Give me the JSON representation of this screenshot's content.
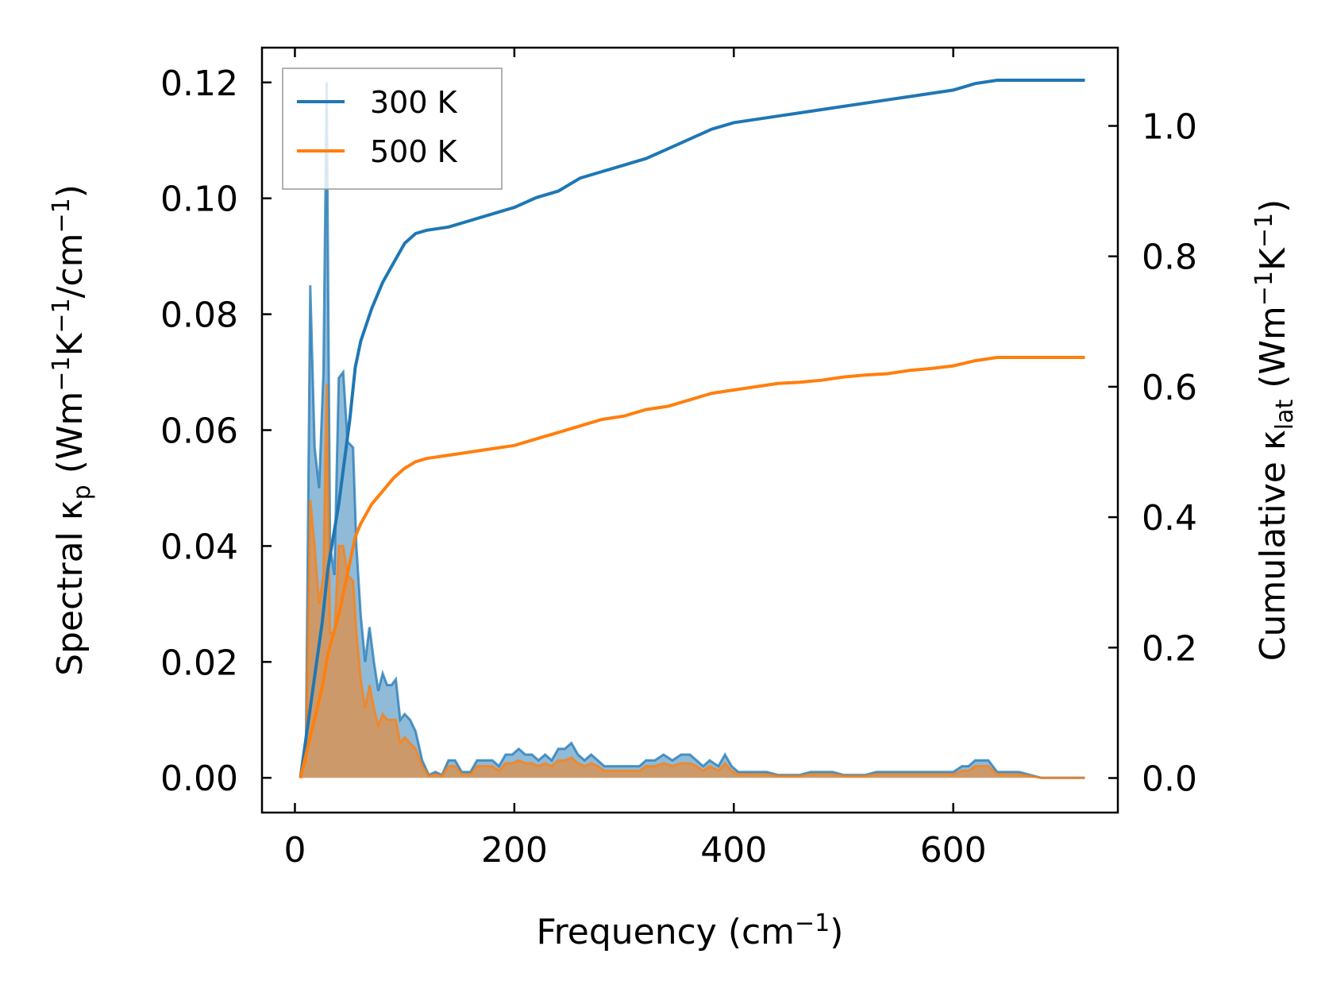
{
  "chart_data": {
    "type": "line",
    "xlabel": "Frequency (cm",
    "xlabel_sup": "−1",
    "xlabel_tail": ")",
    "ylabel_left_main": "Spectral κ",
    "ylabel_left_sub": "p",
    "ylabel_left_tail1": " (Wm",
    "ylabel_left_sup1": "−1",
    "ylabel_left_tail2": "K",
    "ylabel_left_sup2": "−1",
    "ylabel_left_tail3": "/cm",
    "ylabel_left_sup3": "−1",
    "ylabel_left_tail4": ")",
    "ylabel_right_main": "Cumulative κ",
    "ylabel_right_sub": "lat",
    "ylabel_right_tail1": " (Wm",
    "ylabel_right_sup1": "−1",
    "ylabel_right_tail2": "K",
    "ylabel_right_sup2": "−1",
    "ylabel_right_tail3": ")",
    "xlim": [
      -30,
      750
    ],
    "ylim_left": [
      -0.006,
      0.126
    ],
    "ylim_right": [
      -0.053,
      1.12
    ],
    "x_ticks": [
      "0",
      "200",
      "400",
      "600"
    ],
    "x_tick_values": [
      0,
      200,
      400,
      600
    ],
    "y_left_ticks": [
      "0.00",
      "0.02",
      "0.04",
      "0.06",
      "0.08",
      "0.10",
      "0.12"
    ],
    "y_left_tick_values": [
      0,
      0.02,
      0.04,
      0.06,
      0.08,
      0.1,
      0.12
    ],
    "y_right_ticks": [
      "0.0",
      "0.2",
      "0.4",
      "0.6",
      "0.8",
      "1.0"
    ],
    "y_right_tick_values": [
      0,
      0.2,
      0.4,
      0.6,
      0.8,
      1.0
    ],
    "legend_position": "top-left",
    "legend": [
      {
        "label": "300 K",
        "color": "#1f77b4"
      },
      {
        "label": "500 K",
        "color": "#ff7f0e"
      }
    ],
    "spectral_series": [
      {
        "name": "300 K",
        "color": "#1f77b4",
        "axis": "left",
        "fill": true,
        "points": [
          [
            5,
            0
          ],
          [
            10,
            0.005
          ],
          [
            14,
            0.085
          ],
          [
            18,
            0.057
          ],
          [
            22,
            0.05
          ],
          [
            26,
            0.07
          ],
          [
            29,
            0.12
          ],
          [
            32,
            0.04
          ],
          [
            36,
            0.035
          ],
          [
            40,
            0.069
          ],
          [
            44,
            0.07
          ],
          [
            48,
            0.058
          ],
          [
            53,
            0.057
          ],
          [
            56,
            0.04
          ],
          [
            60,
            0.028
          ],
          [
            64,
            0.02
          ],
          [
            68,
            0.026
          ],
          [
            72,
            0.02
          ],
          [
            76,
            0.015
          ],
          [
            80,
            0.018
          ],
          [
            84,
            0.016
          ],
          [
            88,
            0.016
          ],
          [
            92,
            0.017
          ],
          [
            96,
            0.01
          ],
          [
            100,
            0.011
          ],
          [
            105,
            0.01
          ],
          [
            110,
            0.008
          ],
          [
            116,
            0.003
          ],
          [
            122,
            0.0005
          ],
          [
            128,
            0.001
          ],
          [
            134,
            0.0005
          ],
          [
            140,
            0.003
          ],
          [
            146,
            0.003
          ],
          [
            152,
            0.001
          ],
          [
            160,
            0.001
          ],
          [
            166,
            0.003
          ],
          [
            172,
            0.003
          ],
          [
            180,
            0.003
          ],
          [
            186,
            0.002
          ],
          [
            192,
            0.004
          ],
          [
            198,
            0.004
          ],
          [
            204,
            0.005
          ],
          [
            210,
            0.004
          ],
          [
            216,
            0.004
          ],
          [
            222,
            0.003
          ],
          [
            228,
            0.004
          ],
          [
            234,
            0.003
          ],
          [
            240,
            0.005
          ],
          [
            246,
            0.005
          ],
          [
            252,
            0.006
          ],
          [
            258,
            0.004
          ],
          [
            264,
            0.003
          ],
          [
            270,
            0.004
          ],
          [
            276,
            0.003
          ],
          [
            282,
            0.002
          ],
          [
            290,
            0.002
          ],
          [
            300,
            0.002
          ],
          [
            306,
            0.002
          ],
          [
            314,
            0.002
          ],
          [
            320,
            0.003
          ],
          [
            328,
            0.003
          ],
          [
            336,
            0.004
          ],
          [
            344,
            0.003
          ],
          [
            352,
            0.004
          ],
          [
            360,
            0.004
          ],
          [
            366,
            0.003
          ],
          [
            372,
            0.002
          ],
          [
            378,
            0.003
          ],
          [
            386,
            0.002
          ],
          [
            392,
            0.004
          ],
          [
            398,
            0.002
          ],
          [
            404,
            0.001
          ],
          [
            412,
            0.001
          ],
          [
            420,
            0.001
          ],
          [
            430,
            0.001
          ],
          [
            440,
            0.0005
          ],
          [
            450,
            0.0005
          ],
          [
            460,
            0.0005
          ],
          [
            470,
            0.001
          ],
          [
            480,
            0.001
          ],
          [
            490,
            0.001
          ],
          [
            500,
            0.0005
          ],
          [
            510,
            0.0005
          ],
          [
            520,
            0.0005
          ],
          [
            530,
            0.001
          ],
          [
            540,
            0.001
          ],
          [
            550,
            0.001
          ],
          [
            560,
            0.001
          ],
          [
            570,
            0.001
          ],
          [
            580,
            0.001
          ],
          [
            590,
            0.001
          ],
          [
            600,
            0.001
          ],
          [
            608,
            0.002
          ],
          [
            614,
            0.002
          ],
          [
            620,
            0.003
          ],
          [
            626,
            0.003
          ],
          [
            632,
            0.003
          ],
          [
            640,
            0.001
          ],
          [
            648,
            0.001
          ],
          [
            660,
            0.001
          ],
          [
            670,
            0.0005
          ],
          [
            680,
            0
          ],
          [
            700,
            0
          ],
          [
            720,
            0
          ]
        ]
      },
      {
        "name": "500 K",
        "color": "#ff7f0e",
        "axis": "left",
        "fill": true,
        "points": [
          [
            5,
            0
          ],
          [
            10,
            0.003
          ],
          [
            14,
            0.048
          ],
          [
            18,
            0.04
          ],
          [
            22,
            0.03
          ],
          [
            26,
            0.035
          ],
          [
            29,
            0.068
          ],
          [
            32,
            0.025
          ],
          [
            36,
            0.025
          ],
          [
            40,
            0.04
          ],
          [
            44,
            0.04
          ],
          [
            48,
            0.035
          ],
          [
            53,
            0.034
          ],
          [
            56,
            0.025
          ],
          [
            60,
            0.017
          ],
          [
            64,
            0.012
          ],
          [
            68,
            0.016
          ],
          [
            72,
            0.012
          ],
          [
            76,
            0.009
          ],
          [
            80,
            0.011
          ],
          [
            84,
            0.01
          ],
          [
            88,
            0.01
          ],
          [
            92,
            0.01
          ],
          [
            96,
            0.006
          ],
          [
            100,
            0.007
          ],
          [
            105,
            0.006
          ],
          [
            110,
            0.005
          ],
          [
            116,
            0.002
          ],
          [
            122,
            0.0003
          ],
          [
            128,
            0.0006
          ],
          [
            134,
            0.0003
          ],
          [
            140,
            0.002
          ],
          [
            146,
            0.002
          ],
          [
            152,
            0.0006
          ],
          [
            160,
            0.0006
          ],
          [
            166,
            0.002
          ],
          [
            172,
            0.002
          ],
          [
            180,
            0.002
          ],
          [
            186,
            0.0012
          ],
          [
            192,
            0.0025
          ],
          [
            198,
            0.0025
          ],
          [
            204,
            0.003
          ],
          [
            210,
            0.0025
          ],
          [
            216,
            0.0025
          ],
          [
            222,
            0.002
          ],
          [
            228,
            0.0025
          ],
          [
            234,
            0.002
          ],
          [
            240,
            0.003
          ],
          [
            246,
            0.003
          ],
          [
            252,
            0.0035
          ],
          [
            258,
            0.0025
          ],
          [
            264,
            0.002
          ],
          [
            270,
            0.0025
          ],
          [
            276,
            0.002
          ],
          [
            282,
            0.0012
          ],
          [
            290,
            0.0012
          ],
          [
            300,
            0.0012
          ],
          [
            306,
            0.0012
          ],
          [
            314,
            0.0012
          ],
          [
            320,
            0.002
          ],
          [
            328,
            0.002
          ],
          [
            336,
            0.0025
          ],
          [
            344,
            0.002
          ],
          [
            352,
            0.0025
          ],
          [
            360,
            0.0025
          ],
          [
            366,
            0.002
          ],
          [
            372,
            0.0012
          ],
          [
            378,
            0.002
          ],
          [
            386,
            0.0012
          ],
          [
            392,
            0.0025
          ],
          [
            398,
            0.0012
          ],
          [
            404,
            0.0006
          ],
          [
            412,
            0.0006
          ],
          [
            420,
            0.0006
          ],
          [
            430,
            0.0006
          ],
          [
            440,
            0.0003
          ],
          [
            450,
            0.0003
          ],
          [
            460,
            0.0003
          ],
          [
            470,
            0.0006
          ],
          [
            480,
            0.0006
          ],
          [
            490,
            0.0006
          ],
          [
            500,
            0.0003
          ],
          [
            510,
            0.0003
          ],
          [
            520,
            0.0003
          ],
          [
            530,
            0.0006
          ],
          [
            540,
            0.0006
          ],
          [
            550,
            0.0006
          ],
          [
            560,
            0.0006
          ],
          [
            570,
            0.0006
          ],
          [
            580,
            0.0006
          ],
          [
            590,
            0.0006
          ],
          [
            600,
            0.0006
          ],
          [
            608,
            0.0012
          ],
          [
            614,
            0.0012
          ],
          [
            620,
            0.002
          ],
          [
            626,
            0.002
          ],
          [
            632,
            0.002
          ],
          [
            640,
            0.0006
          ],
          [
            648,
            0.0006
          ],
          [
            660,
            0.0006
          ],
          [
            670,
            0.0003
          ],
          [
            680,
            0
          ],
          [
            700,
            0
          ],
          [
            720,
            0
          ]
        ]
      }
    ],
    "cumulative_series": [
      {
        "name": "300 K",
        "color": "#1f77b4",
        "axis": "right",
        "points": [
          [
            5,
            0
          ],
          [
            15,
            0.12
          ],
          [
            25,
            0.24
          ],
          [
            30,
            0.32
          ],
          [
            40,
            0.42
          ],
          [
            50,
            0.55
          ],
          [
            55,
            0.63
          ],
          [
            60,
            0.67
          ],
          [
            70,
            0.72
          ],
          [
            80,
            0.76
          ],
          [
            90,
            0.79
          ],
          [
            100,
            0.82
          ],
          [
            110,
            0.835
          ],
          [
            120,
            0.84
          ],
          [
            140,
            0.845
          ],
          [
            160,
            0.855
          ],
          [
            180,
            0.865
          ],
          [
            200,
            0.875
          ],
          [
            220,
            0.89
          ],
          [
            240,
            0.9
          ],
          [
            260,
            0.92
          ],
          [
            280,
            0.93
          ],
          [
            300,
            0.94
          ],
          [
            320,
            0.95
          ],
          [
            340,
            0.965
          ],
          [
            360,
            0.98
          ],
          [
            380,
            0.995
          ],
          [
            400,
            1.005
          ],
          [
            420,
            1.01
          ],
          [
            440,
            1.015
          ],
          [
            460,
            1.02
          ],
          [
            480,
            1.025
          ],
          [
            500,
            1.03
          ],
          [
            520,
            1.035
          ],
          [
            540,
            1.04
          ],
          [
            560,
            1.045
          ],
          [
            580,
            1.05
          ],
          [
            600,
            1.055
          ],
          [
            620,
            1.065
          ],
          [
            640,
            1.07
          ],
          [
            660,
            1.07
          ],
          [
            680,
            1.07
          ],
          [
            700,
            1.07
          ],
          [
            720,
            1.07
          ]
        ]
      },
      {
        "name": "500 K",
        "color": "#ff7f0e",
        "axis": "right",
        "points": [
          [
            5,
            0
          ],
          [
            15,
            0.07
          ],
          [
            25,
            0.14
          ],
          [
            30,
            0.19
          ],
          [
            40,
            0.25
          ],
          [
            50,
            0.33
          ],
          [
            55,
            0.37
          ],
          [
            60,
            0.39
          ],
          [
            70,
            0.42
          ],
          [
            80,
            0.44
          ],
          [
            90,
            0.46
          ],
          [
            100,
            0.475
          ],
          [
            110,
            0.485
          ],
          [
            120,
            0.49
          ],
          [
            140,
            0.495
          ],
          [
            160,
            0.5
          ],
          [
            180,
            0.505
          ],
          [
            200,
            0.51
          ],
          [
            220,
            0.52
          ],
          [
            240,
            0.53
          ],
          [
            260,
            0.54
          ],
          [
            280,
            0.55
          ],
          [
            300,
            0.555
          ],
          [
            320,
            0.565
          ],
          [
            340,
            0.57
          ],
          [
            360,
            0.58
          ],
          [
            380,
            0.59
          ],
          [
            400,
            0.595
          ],
          [
            420,
            0.6
          ],
          [
            440,
            0.605
          ],
          [
            460,
            0.607
          ],
          [
            480,
            0.61
          ],
          [
            500,
            0.615
          ],
          [
            520,
            0.618
          ],
          [
            540,
            0.62
          ],
          [
            560,
            0.625
          ],
          [
            580,
            0.628
          ],
          [
            600,
            0.632
          ],
          [
            620,
            0.64
          ],
          [
            640,
            0.645
          ],
          [
            660,
            0.645
          ],
          [
            680,
            0.645
          ],
          [
            700,
            0.645
          ],
          [
            720,
            0.645
          ]
        ]
      }
    ]
  }
}
